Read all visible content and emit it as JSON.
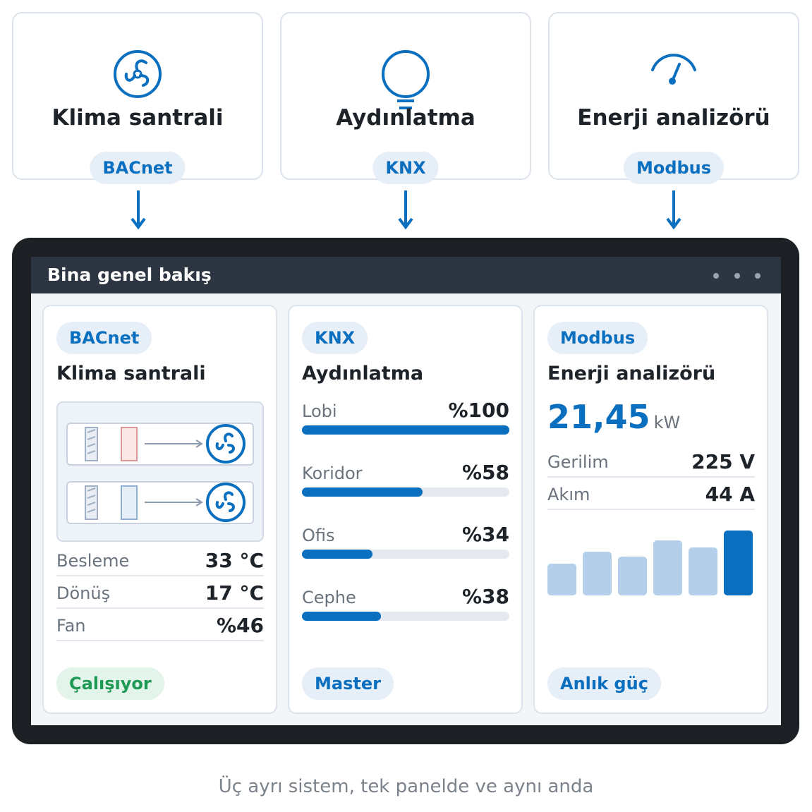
{
  "sources": [
    {
      "title": "Klima santrali",
      "protocol": "BACnet"
    },
    {
      "title": "Aydınlatma",
      "protocol": "KNX"
    },
    {
      "title": "Enerji analizörü",
      "protocol": "Modbus"
    }
  ],
  "panel": {
    "title": "Bina genel bakış",
    "hvac": {
      "protocol": "BACnet",
      "title": "Klima santrali",
      "rows": [
        [
          "Besleme",
          "33 °C"
        ],
        [
          "Dönüş",
          "17 °C"
        ],
        [
          "Fan",
          "%46"
        ]
      ],
      "status": "Çalışıyor"
    },
    "lighting": {
      "protocol": "KNX",
      "title": "Aydınlatma",
      "rows": [
        {
          "label": "Lobi",
          "value": 100,
          "value_label": "%100"
        },
        {
          "label": "Koridor",
          "value": 58,
          "value_label": "%58"
        },
        {
          "label": "Ofis",
          "value": 34,
          "value_label": "%34"
        },
        {
          "label": "Cephe",
          "value": 38,
          "value_label": "%38"
        }
      ],
      "footer": "Master"
    },
    "energy": {
      "protocol": "Modbus",
      "title": "Enerji analizörü",
      "reading": "21,45",
      "unit": "kW",
      "rows": [
        [
          "Gerilim",
          "225 V"
        ],
        [
          "Akım",
          "44 A"
        ]
      ],
      "bars": [
        45,
        62,
        55,
        78,
        68,
        92
      ],
      "footer": "Anlık güç"
    }
  },
  "caption": "Üç ayrı sistem, tek panelde ve aynı anda"
}
